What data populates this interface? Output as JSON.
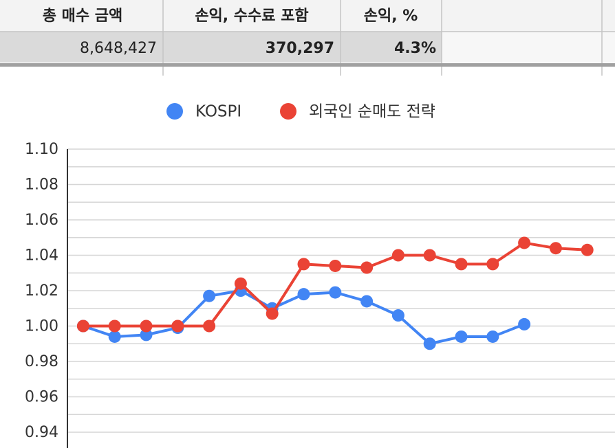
{
  "table": {
    "header": [
      "총 매수 금액",
      "손익, 수수료 포함",
      "손익, %"
    ],
    "rows": [
      [
        "8,648,427",
        "370,297",
        "4.3%"
      ]
    ]
  },
  "chart_data": {
    "type": "line",
    "categories": [
      null,
      null,
      null,
      null,
      null,
      null,
      null,
      null,
      null,
      null,
      null,
      null,
      null,
      null,
      null,
      null,
      null
    ],
    "series": [
      {
        "name": "KOSPI",
        "color": "#4285f4",
        "values": [
          1.0,
          0.994,
          0.995,
          0.999,
          1.017,
          1.02,
          1.01,
          1.018,
          1.019,
          1.014,
          1.006,
          0.99,
          0.994,
          0.994,
          1.001,
          null,
          null
        ]
      },
      {
        "name": "외국인 순매도 전략",
        "color": "#ea4335",
        "values": [
          1.0,
          1.0,
          1.0,
          1.0,
          1.0,
          1.024,
          1.007,
          1.035,
          1.034,
          1.033,
          1.04,
          1.04,
          1.035,
          1.035,
          1.047,
          1.044,
          1.043
        ]
      }
    ],
    "ylim": [
      0.93,
      1.1
    ],
    "yticks": [
      {
        "value": 1.1,
        "label": "1.10"
      },
      {
        "value": 1.08,
        "label": "1.08"
      },
      {
        "value": 1.06,
        "label": "1.06"
      },
      {
        "value": 1.04,
        "label": "1.04"
      },
      {
        "value": 1.02,
        "label": "1.02"
      },
      {
        "value": 1.0,
        "label": "1.00"
      },
      {
        "value": 0.98,
        "label": "0.98"
      },
      {
        "value": 0.96,
        "label": "0.96"
      },
      {
        "value": 0.94,
        "label": "0.94"
      }
    ],
    "minor_yticks": [
      1.09,
      1.07,
      1.05,
      1.03,
      1.01,
      0.99,
      0.97,
      0.95,
      0.93
    ],
    "grid": true,
    "legend": "top"
  }
}
